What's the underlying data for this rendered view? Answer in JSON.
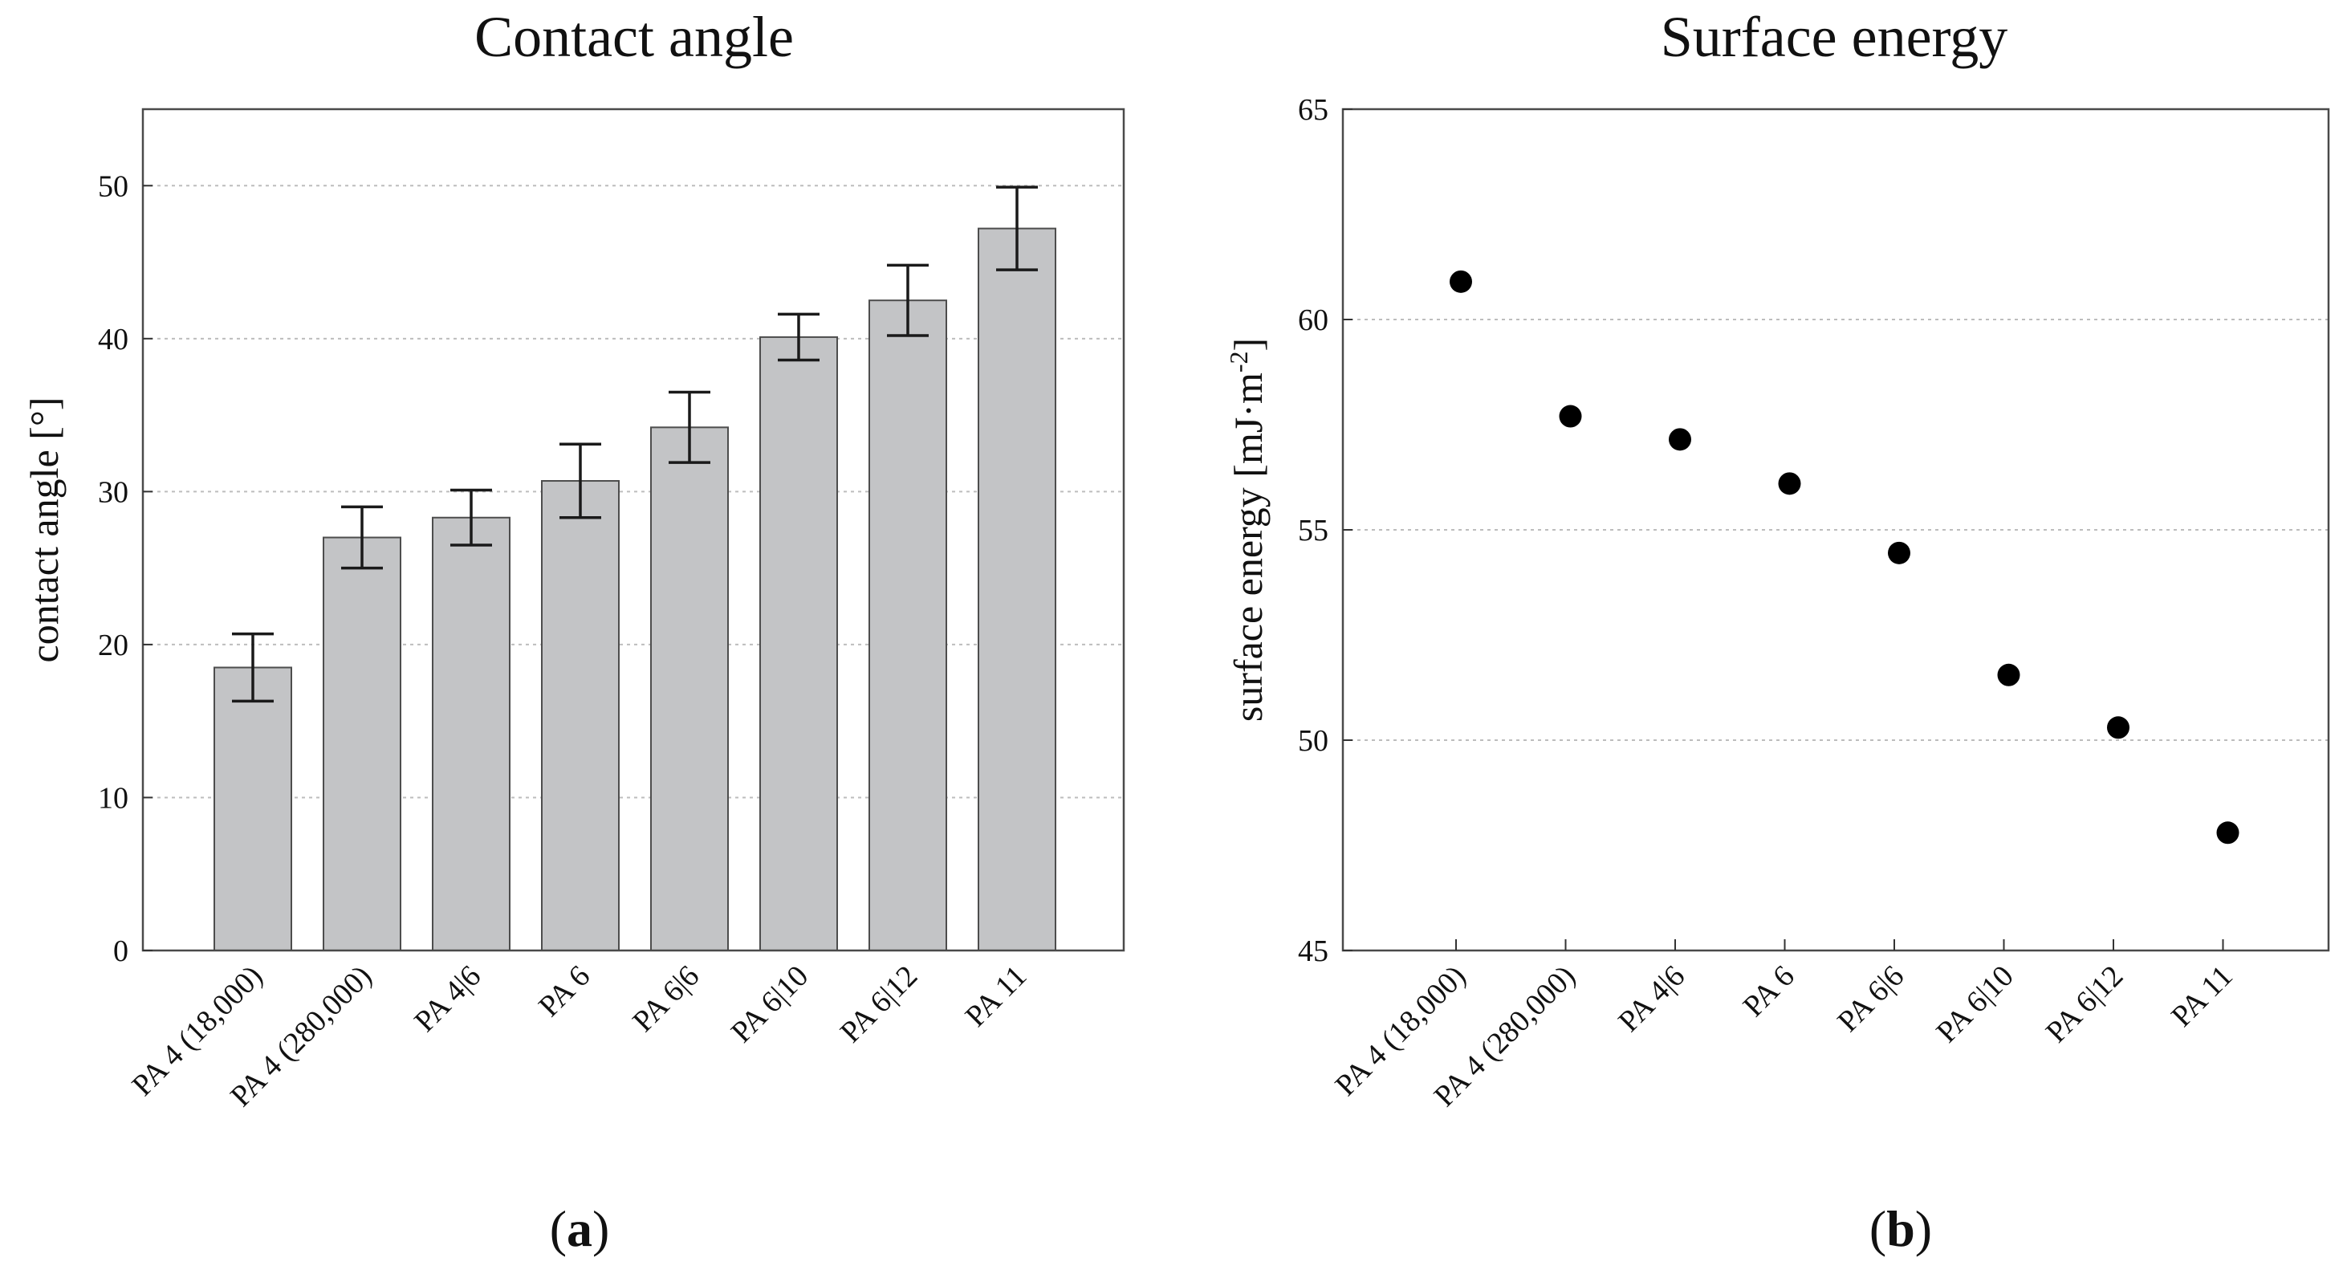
{
  "colors": {
    "bar_fill": "#c3c4c6",
    "point_fill": "#000000",
    "text": "#111111"
  },
  "chart_data": [
    {
      "type": "bar",
      "panel_label": "a",
      "title": "Contact angle",
      "xlabel": "",
      "ylabel": "contact angle [°]",
      "ylim": [
        0,
        55
      ],
      "yticks": [
        0,
        10,
        20,
        30,
        40,
        50
      ],
      "ytick_labels": [
        "0",
        "10",
        "20",
        "30",
        "40",
        "50"
      ],
      "grid": true,
      "categories": [
        "PA 4 (18,000)",
        "PA 4 (280,000)",
        "PA 4|6",
        "PA 6",
        "PA 6|6",
        "PA 6|10",
        "PA 6|12",
        "PA 11"
      ],
      "values": [
        18.5,
        27.0,
        28.3,
        30.7,
        34.2,
        40.1,
        42.5,
        47.2
      ],
      "errors": [
        2.2,
        2.0,
        1.8,
        2.4,
        2.3,
        1.5,
        2.3,
        2.7
      ]
    },
    {
      "type": "scatter",
      "panel_label": "b",
      "title": "Surface energy",
      "xlabel": "",
      "ylabel": "surface energy [mJ·m",
      "ylabel_superscript": "-2",
      "ylabel_suffix": "]",
      "ylim": [
        45,
        65
      ],
      "yticks": [
        45,
        50,
        55,
        60,
        65
      ],
      "ytick_labels": [
        "45",
        "50",
        "55",
        "60",
        "65"
      ],
      "grid": true,
      "categories": [
        "PA 4 (18,000)",
        "PA 4 (280,000)",
        "PA 4|6",
        "PA 6",
        "PA 6|6",
        "PA 6|10",
        "PA 6|12",
        "PA 11"
      ],
      "values": [
        60.9,
        57.7,
        57.15,
        56.1,
        54.45,
        51.55,
        50.3,
        47.8
      ]
    }
  ]
}
